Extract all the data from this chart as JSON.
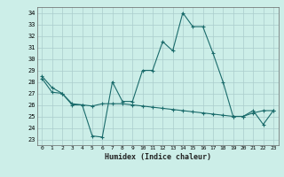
{
  "title": "",
  "xlabel": "Humidex (Indice chaleur)",
  "background_color": "#cceee8",
  "grid_color": "#aacccc",
  "line_color": "#1a6b6b",
  "xlim": [
    -0.5,
    23.5
  ],
  "ylim": [
    22.5,
    34.5
  ],
  "yticks": [
    23,
    24,
    25,
    26,
    27,
    28,
    29,
    30,
    31,
    32,
    33,
    34
  ],
  "xticks": [
    0,
    1,
    2,
    3,
    4,
    5,
    6,
    7,
    8,
    9,
    10,
    11,
    12,
    13,
    14,
    15,
    16,
    17,
    18,
    19,
    20,
    21,
    22,
    23
  ],
  "line1_x": [
    0,
    1,
    2,
    3,
    4,
    5,
    6,
    7,
    8,
    9,
    10,
    11,
    12,
    13,
    14,
    15,
    16,
    17,
    18,
    19,
    20,
    21,
    22,
    23
  ],
  "line1_y": [
    28.5,
    27.5,
    27.0,
    26.0,
    26.0,
    23.3,
    23.2,
    28.0,
    26.3,
    26.3,
    29.0,
    29.0,
    31.5,
    30.7,
    34.0,
    32.8,
    32.8,
    30.5,
    28.0,
    25.0,
    25.0,
    25.5,
    24.3,
    25.5
  ],
  "line2_x": [
    0,
    1,
    2,
    3,
    4,
    5,
    6,
    7,
    8,
    9,
    10,
    11,
    12,
    13,
    14,
    15,
    16,
    17,
    18,
    19,
    20,
    21,
    22,
    23
  ],
  "line2_y": [
    28.3,
    27.1,
    27.0,
    26.1,
    26.0,
    25.9,
    26.1,
    26.1,
    26.1,
    26.0,
    25.9,
    25.8,
    25.7,
    25.6,
    25.5,
    25.4,
    25.3,
    25.2,
    25.1,
    25.0,
    25.0,
    25.3,
    25.5,
    25.5
  ]
}
